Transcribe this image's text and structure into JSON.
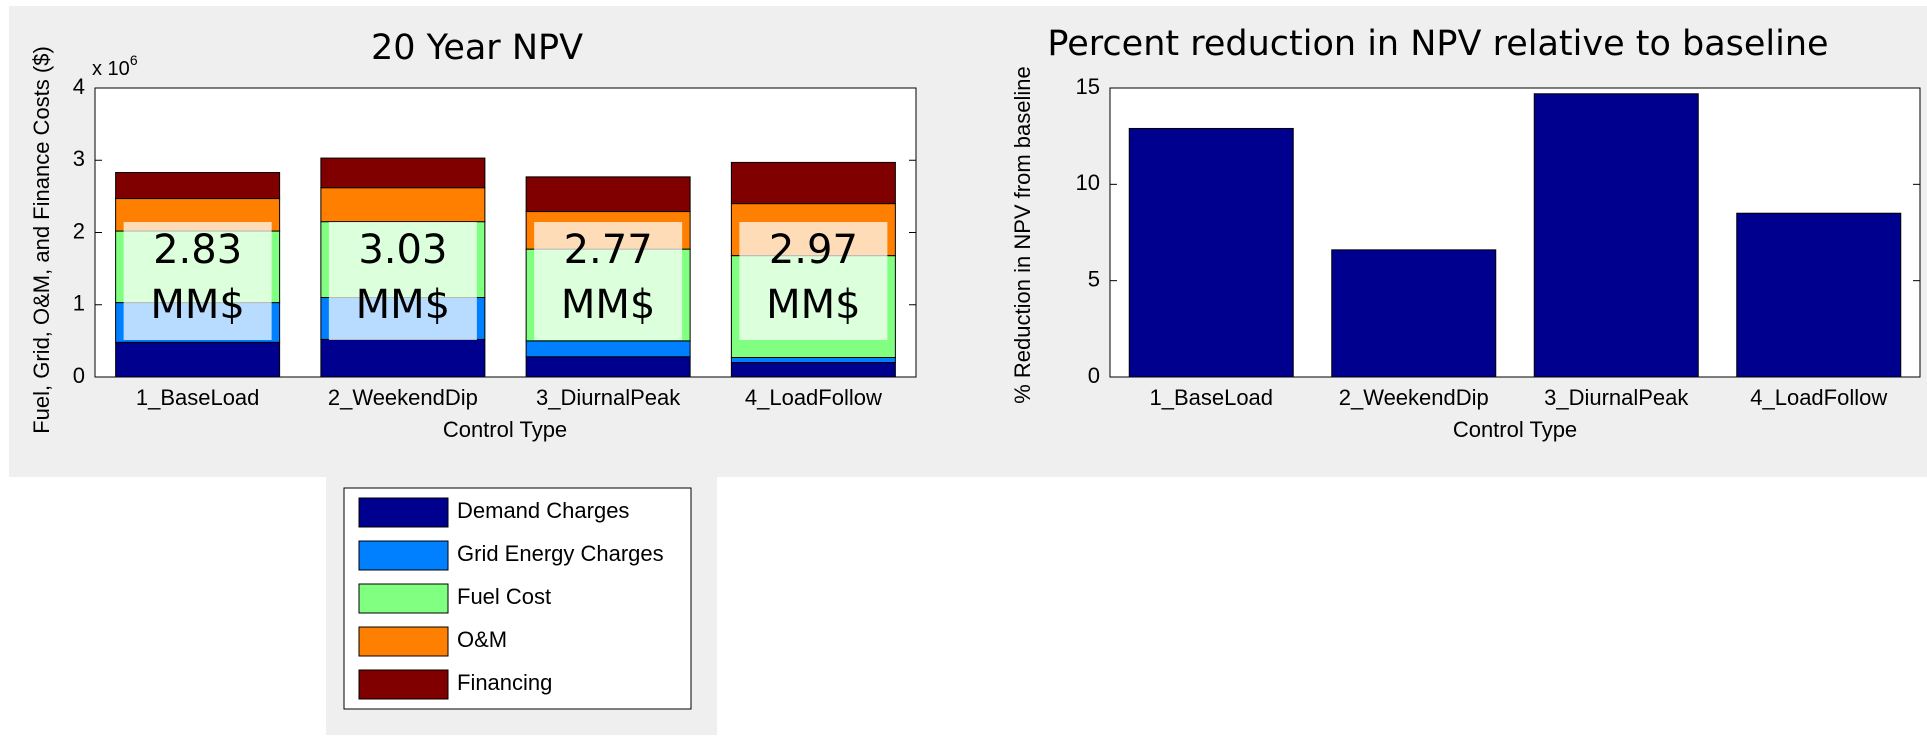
{
  "chart_data": [
    {
      "type": "stacked_bar",
      "title": "20 Year NPV",
      "y_label": "Fuel, Grid, O&M, and Finance Costs ($)",
      "x_label": "Control Type",
      "y_multiplier": {
        "base": "x 10",
        "exponent": "6"
      },
      "categories": [
        "1_BaseLoad",
        "2_WeekendDip",
        "3_DiurnalPeak",
        "4_LoadFollow"
      ],
      "series": [
        {
          "name": "Demand Charges",
          "color": "#00008f",
          "values": [
            0.48,
            0.52,
            0.28,
            0.2
          ]
        },
        {
          "name": "Grid Energy Charges",
          "color": "#0080ff",
          "values": [
            0.55,
            0.58,
            0.22,
            0.07
          ]
        },
        {
          "name": "Fuel Cost",
          "color": "#80ff80",
          "values": [
            0.99,
            1.05,
            1.27,
            1.41
          ]
        },
        {
          "name": "O&M",
          "color": "#ff8000",
          "values": [
            0.45,
            0.47,
            0.52,
            0.72
          ]
        },
        {
          "name": "Financing",
          "color": "#800000",
          "values": [
            0.36,
            0.41,
            0.48,
            0.57
          ]
        }
      ],
      "annotations": [
        [
          "2.83",
          "MM$"
        ],
        [
          "3.03",
          "MM$"
        ],
        [
          "2.77",
          "MM$"
        ],
        [
          "2.97",
          "MM$"
        ]
      ],
      "ylim": [
        0,
        4
      ],
      "yticks": [
        0,
        1,
        2,
        3,
        4
      ]
    },
    {
      "type": "bar",
      "title": "Percent reduction in NPV relative to baseline",
      "y_label": "% Reduction in NPV from baseline",
      "x_label": "Control Type",
      "categories": [
        "1_BaseLoad",
        "2_WeekendDip",
        "3_DiurnalPeak",
        "4_LoadFollow"
      ],
      "values": [
        12.9,
        6.6,
        14.7,
        8.5
      ],
      "color": "#00008f",
      "ylim": [
        0,
        15
      ],
      "yticks": [
        0,
        5,
        10,
        15
      ]
    }
  ]
}
